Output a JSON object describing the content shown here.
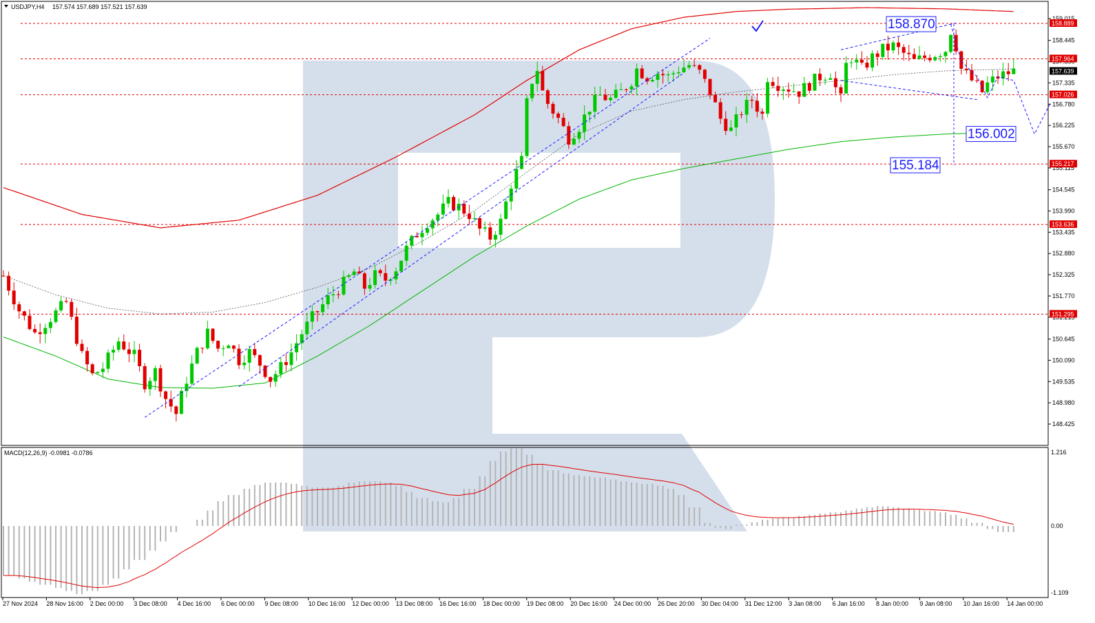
{
  "header": {
    "symbol": "USDJPY,H4",
    "ohlc": "157.574 157.689 157.521 157.639"
  },
  "macd": {
    "label": "MACD(12,26,9) -0.0981 -0.0786",
    "scale_top": "1.216",
    "scale_zero": "0.00",
    "scale_bottom": "-1.109"
  },
  "colors": {
    "bull": "#00c800",
    "bear": "#e00000",
    "upper_curve": "#e00000",
    "lower_curve": "#00b400",
    "mid_curve": "#555555",
    "level_line": "#e00000",
    "forecast": "#1a1aff",
    "histogram": "#b4b4b4",
    "signal": "#e00000",
    "watermark": "#d5dfeb"
  },
  "chart_data": {
    "type": "candlestick",
    "price_axis": {
      "range": [
        148.26,
        159.06
      ],
      "ticks": [
        "159.015",
        "158.445",
        "157.890",
        "157.335",
        "156.780",
        "156.225",
        "155.670",
        "155.115",
        "154.545",
        "153.990",
        "153.435",
        "152.880",
        "152.325",
        "151.770",
        "151.215",
        "150.645",
        "150.090",
        "149.535",
        "148.980",
        "148.425"
      ]
    },
    "current_price": "157.639",
    "levels": [
      {
        "value": 158.889,
        "label": "158.889"
      },
      {
        "value": 157.964,
        "label": "157.964"
      },
      {
        "value": 157.026,
        "label": "157.026"
      },
      {
        "value": 155.217,
        "label": "155.217"
      },
      {
        "value": 153.636,
        "label": "153.636"
      },
      {
        "value": 151.295,
        "label": "151.295"
      }
    ],
    "annotations": [
      {
        "text": "158.870",
        "price": 158.87
      },
      {
        "text": "156.002",
        "price": 156.002
      },
      {
        "text": "155.184",
        "price": 155.184
      }
    ],
    "time_labels": [
      "27 Nov 2024",
      "28 Nov 16:00",
      "2 Dec 00:00",
      "3 Dec 08:00",
      "4 Dec 16:00",
      "6 Dec 00:00",
      "9 Dec 08:00",
      "10 Dec 16:00",
      "12 Dec 00:00",
      "13 Dec 08:00",
      "16 Dec 16:00",
      "18 Dec 00:00",
      "19 Dec 08:00",
      "20 Dec 16:00",
      "24 Dec 00:00",
      "26 Dec 20:00",
      "30 Dec 04:00",
      "31 Dec 12:00",
      "3 Jan 08:00",
      "6 Jan 16:00",
      "8 Jan 00:00",
      "9 Jan 08:00",
      "10 Jan 16:00",
      "14 Jan 00:00"
    ],
    "close_path": [
      [
        0,
        152.3
      ],
      [
        3,
        151.4
      ],
      [
        6,
        150.8
      ],
      [
        9,
        151.2
      ],
      [
        12,
        151.6
      ],
      [
        15,
        150.2
      ],
      [
        17,
        149.7
      ],
      [
        19,
        149.9
      ],
      [
        22,
        150.6
      ],
      [
        25,
        150.2
      ],
      [
        27,
        149.5
      ],
      [
        29,
        149.8
      ],
      [
        31,
        149.1
      ],
      [
        33,
        148.7
      ],
      [
        35,
        149.6
      ],
      [
        37,
        150.3
      ],
      [
        39,
        150.8
      ],
      [
        41,
        150.4
      ],
      [
        43,
        150.6
      ],
      [
        45,
        150.1
      ],
      [
        47,
        150.3
      ],
      [
        49,
        150.0
      ],
      [
        51,
        149.6
      ],
      [
        53,
        149.9
      ],
      [
        55,
        150.3
      ],
      [
        57,
        150.8
      ],
      [
        59,
        151.2
      ],
      [
        62,
        151.7
      ],
      [
        65,
        152.1
      ],
      [
        67,
        152.4
      ],
      [
        69,
        152.0
      ],
      [
        71,
        152.3
      ],
      [
        73,
        152.2
      ],
      [
        75,
        152.5
      ],
      [
        77,
        153.0
      ],
      [
        79,
        153.4
      ],
      [
        81,
        153.7
      ],
      [
        83,
        153.9
      ],
      [
        85,
        154.2
      ],
      [
        87,
        154.1
      ],
      [
        89,
        153.9
      ],
      [
        91,
        153.5
      ],
      [
        93,
        153.3
      ],
      [
        95,
        153.7
      ],
      [
        97,
        154.7
      ],
      [
        99,
        155.3
      ],
      [
        100,
        156.8
      ],
      [
        101,
        157.4
      ],
      [
        102,
        157.7
      ],
      [
        103,
        157.1
      ],
      [
        104,
        156.8
      ],
      [
        106,
        156.4
      ],
      [
        108,
        155.9
      ],
      [
        110,
        156.2
      ],
      [
        112,
        156.7
      ],
      [
        114,
        157.0
      ],
      [
        116,
        156.9
      ],
      [
        118,
        157.1
      ],
      [
        120,
        157.4
      ],
      [
        121,
        157.7
      ],
      [
        123,
        157.5
      ],
      [
        125,
        157.6
      ],
      [
        127,
        157.5
      ],
      [
        129,
        157.7
      ],
      [
        131,
        157.8
      ],
      [
        133,
        157.6
      ],
      [
        135,
        157.1
      ],
      [
        137,
        156.4
      ],
      [
        139,
        156.1
      ],
      [
        141,
        156.6
      ],
      [
        143,
        156.9
      ],
      [
        145,
        156.5
      ],
      [
        146,
        157.5
      ],
      [
        148,
        157.3
      ],
      [
        150,
        157.2
      ],
      [
        152,
        157.1
      ],
      [
        154,
        157.3
      ],
      [
        156,
        157.5
      ],
      [
        158,
        157.6
      ],
      [
        159,
        157.2
      ],
      [
        160,
        156.9
      ],
      [
        161,
        157.8
      ],
      [
        162,
        158.0
      ],
      [
        164,
        157.7
      ],
      [
        166,
        158.0
      ],
      [
        168,
        158.2
      ],
      [
        170,
        158.3
      ],
      [
        172,
        158.1
      ],
      [
        174,
        157.9
      ],
      [
        176,
        158.0
      ],
      [
        178,
        158.1
      ],
      [
        180,
        158.2
      ],
      [
        181,
        158.7
      ],
      [
        182,
        158.3
      ],
      [
        183,
        157.7
      ],
      [
        185,
        157.4
      ],
      [
        187,
        157.1
      ],
      [
        188,
        157.3
      ],
      [
        190,
        157.5
      ],
      [
        192,
        157.6
      ],
      [
        193,
        157.64
      ]
    ],
    "upper_curve": [
      [
        0,
        154.6
      ],
      [
        15,
        153.9
      ],
      [
        30,
        153.55
      ],
      [
        45,
        153.75
      ],
      [
        60,
        154.4
      ],
      [
        75,
        155.4
      ],
      [
        90,
        156.5
      ],
      [
        100,
        157.4
      ],
      [
        110,
        158.2
      ],
      [
        120,
        158.75
      ],
      [
        130,
        159.05
      ],
      [
        140,
        159.2
      ],
      [
        150,
        159.26
      ],
      [
        165,
        159.3
      ],
      [
        180,
        159.27
      ],
      [
        193,
        159.2
      ]
    ],
    "mid_curve": [
      [
        0,
        152.3
      ],
      [
        10,
        151.8
      ],
      [
        20,
        151.45
      ],
      [
        30,
        151.3
      ],
      [
        40,
        151.35
      ],
      [
        50,
        151.6
      ],
      [
        60,
        152.0
      ],
      [
        70,
        152.5
      ],
      [
        80,
        153.2
      ],
      [
        90,
        154.0
      ],
      [
        100,
        155.0
      ],
      [
        110,
        156.0
      ],
      [
        120,
        156.6
      ],
      [
        130,
        156.9
      ],
      [
        140,
        157.1
      ],
      [
        150,
        157.25
      ],
      [
        160,
        157.4
      ],
      [
        170,
        157.55
      ],
      [
        180,
        157.65
      ],
      [
        193,
        157.7
      ]
    ],
    "lower_curve": [
      [
        0,
        150.7
      ],
      [
        10,
        150.2
      ],
      [
        20,
        149.6
      ],
      [
        30,
        149.38
      ],
      [
        40,
        149.36
      ],
      [
        50,
        149.5
      ],
      [
        60,
        150.2
      ],
      [
        70,
        151.0
      ],
      [
        80,
        151.9
      ],
      [
        90,
        152.8
      ],
      [
        100,
        153.6
      ],
      [
        110,
        154.3
      ],
      [
        120,
        154.8
      ],
      [
        130,
        155.1
      ],
      [
        140,
        155.35
      ],
      [
        150,
        155.6
      ],
      [
        160,
        155.8
      ],
      [
        170,
        155.92
      ],
      [
        180,
        156.0
      ],
      [
        193,
        156.05
      ]
    ],
    "forecast_path": [
      [
        181,
        158.87
      ],
      [
        183,
        157.9
      ],
      [
        186,
        157.5
      ],
      [
        188,
        156.95
      ],
      [
        190,
        157.5
      ],
      [
        193,
        157.4
      ],
      [
        197,
        156.0
      ],
      [
        200,
        156.8
      ]
    ],
    "macd_histogram": [
      -0.8,
      -0.85,
      -0.9,
      -0.95,
      -1.0,
      -1.05,
      -1.1,
      -1.05,
      -0.95,
      -0.85,
      -0.7,
      -0.55,
      -0.4,
      -0.25,
      -0.1,
      0.0,
      0.1,
      0.25,
      0.4,
      0.5,
      0.6,
      0.66,
      0.7,
      0.7,
      0.68,
      0.65,
      0.62,
      0.62,
      0.65,
      0.7,
      0.72,
      0.72,
      0.7,
      0.65,
      0.55,
      0.45,
      0.4,
      0.38,
      0.45,
      0.6,
      0.8,
      1.05,
      1.2,
      1.25,
      1.15,
      1.0,
      0.9,
      0.85,
      0.82,
      0.8,
      0.78,
      0.75,
      0.72,
      0.7,
      0.68,
      0.65,
      0.6,
      0.5,
      0.3,
      0.05,
      -0.03,
      -0.05,
      0.02,
      0.06,
      0.1,
      0.12,
      0.14,
      0.16,
      0.18,
      0.2,
      0.22,
      0.25,
      0.28,
      0.3,
      0.32,
      0.3,
      0.28,
      0.26,
      0.24,
      0.22,
      0.18,
      0.12,
      0.05,
      -0.05,
      -0.1,
      -0.1
    ]
  }
}
